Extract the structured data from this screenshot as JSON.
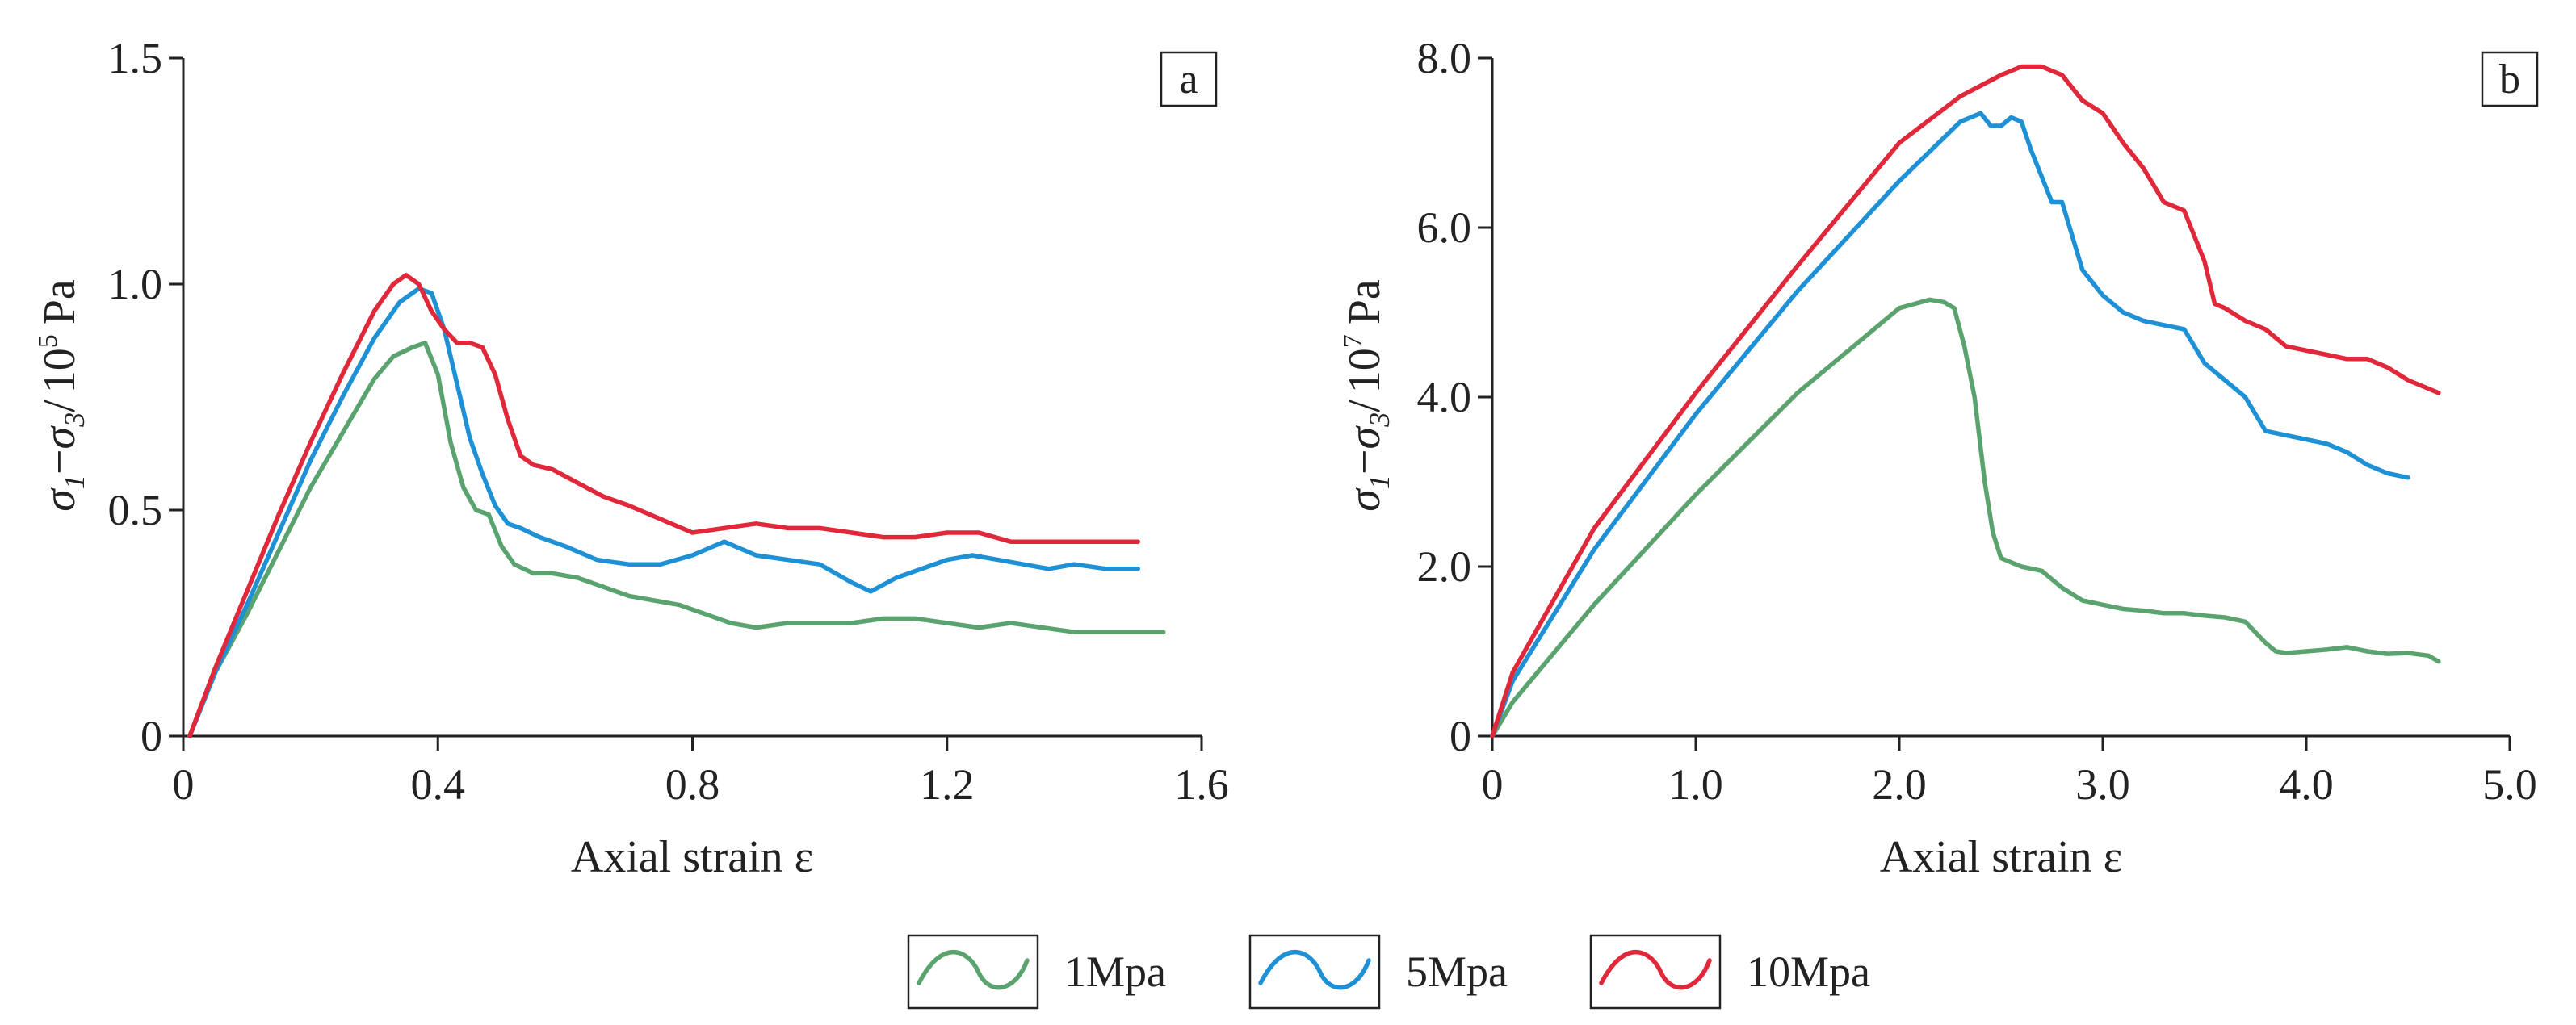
{
  "colors": {
    "s1": "#5aa36e",
    "s5": "#1e90d6",
    "s10": "#e0283a",
    "axis": "#222222"
  },
  "legend": [
    {
      "name": "1Mpa",
      "color": "#5aa36e"
    },
    {
      "name": "5Mpa",
      "color": "#1e90d6"
    },
    {
      "name": "10Mpa",
      "color": "#e0283a"
    }
  ],
  "chart_data": [
    {
      "panel_label": "a",
      "type": "line",
      "xlabel": "Axial strain ε",
      "ylabel": {
        "main": "σ",
        "sub1": "1",
        "minus": "−",
        "sub3": "3",
        "slash": "/",
        "base": "10",
        "exp": "5",
        "unit": "Pa"
      },
      "xlim": [
        0,
        1.6
      ],
      "ylim": [
        0,
        1.5
      ],
      "xticks": [
        0,
        0.4,
        0.8,
        1.2,
        1.6
      ],
      "xtick_labels": [
        "0",
        "0.4",
        "0.8",
        "1.2",
        "1.6"
      ],
      "yticks": [
        0,
        0.5,
        1.0,
        1.5
      ],
      "ytick_labels": [
        "0",
        "0.5",
        "1.0",
        "1.5"
      ],
      "series": [
        {
          "name": "1Mpa",
          "x": [
            0.01,
            0.05,
            0.1,
            0.15,
            0.2,
            0.25,
            0.3,
            0.33,
            0.36,
            0.38,
            0.4,
            0.42,
            0.44,
            0.46,
            0.48,
            0.5,
            0.52,
            0.55,
            0.58,
            0.62,
            0.66,
            0.7,
            0.74,
            0.78,
            0.82,
            0.86,
            0.9,
            0.95,
            1.0,
            1.05,
            1.1,
            1.15,
            1.2,
            1.25,
            1.3,
            1.35,
            1.4,
            1.45,
            1.5,
            1.54
          ],
          "y": [
            0.0,
            0.14,
            0.27,
            0.41,
            0.55,
            0.67,
            0.79,
            0.84,
            0.86,
            0.87,
            0.8,
            0.65,
            0.55,
            0.5,
            0.49,
            0.42,
            0.38,
            0.36,
            0.36,
            0.35,
            0.33,
            0.31,
            0.3,
            0.29,
            0.27,
            0.25,
            0.24,
            0.25,
            0.25,
            0.25,
            0.26,
            0.26,
            0.25,
            0.24,
            0.25,
            0.24,
            0.23,
            0.23,
            0.23,
            0.23
          ]
        },
        {
          "name": "5Mpa",
          "x": [
            0.01,
            0.05,
            0.1,
            0.15,
            0.2,
            0.25,
            0.3,
            0.34,
            0.37,
            0.39,
            0.41,
            0.43,
            0.45,
            0.47,
            0.49,
            0.51,
            0.53,
            0.56,
            0.6,
            0.65,
            0.7,
            0.75,
            0.8,
            0.85,
            0.9,
            0.95,
            1.0,
            1.05,
            1.08,
            1.12,
            1.16,
            1.2,
            1.24,
            1.28,
            1.32,
            1.36,
            1.4,
            1.45,
            1.5
          ],
          "y": [
            0.0,
            0.14,
            0.29,
            0.45,
            0.61,
            0.75,
            0.88,
            0.96,
            0.99,
            0.98,
            0.9,
            0.78,
            0.66,
            0.58,
            0.51,
            0.47,
            0.46,
            0.44,
            0.42,
            0.39,
            0.38,
            0.38,
            0.4,
            0.43,
            0.4,
            0.39,
            0.38,
            0.34,
            0.32,
            0.35,
            0.37,
            0.39,
            0.4,
            0.39,
            0.38,
            0.37,
            0.38,
            0.37,
            0.37
          ]
        },
        {
          "name": "10Mpa",
          "x": [
            0.01,
            0.05,
            0.1,
            0.15,
            0.2,
            0.25,
            0.3,
            0.33,
            0.35,
            0.37,
            0.39,
            0.41,
            0.43,
            0.45,
            0.47,
            0.49,
            0.51,
            0.53,
            0.55,
            0.58,
            0.62,
            0.66,
            0.7,
            0.75,
            0.8,
            0.85,
            0.9,
            0.95,
            1.0,
            1.05,
            1.1,
            1.15,
            1.2,
            1.25,
            1.3,
            1.35,
            1.4,
            1.45,
            1.5
          ],
          "y": [
            0.0,
            0.15,
            0.32,
            0.49,
            0.65,
            0.8,
            0.94,
            1.0,
            1.02,
            1.0,
            0.94,
            0.9,
            0.87,
            0.87,
            0.86,
            0.8,
            0.7,
            0.62,
            0.6,
            0.59,
            0.56,
            0.53,
            0.51,
            0.48,
            0.45,
            0.46,
            0.47,
            0.46,
            0.46,
            0.45,
            0.44,
            0.44,
            0.45,
            0.45,
            0.43,
            0.43,
            0.43,
            0.43,
            0.43
          ]
        }
      ]
    },
    {
      "panel_label": "b",
      "type": "line",
      "xlabel": "Axial strain ε",
      "ylabel": {
        "main": "σ",
        "sub1": "1",
        "minus": "−",
        "sub3": "3",
        "slash": "/",
        "base": "10",
        "exp": "7",
        "unit": "Pa"
      },
      "xlim": [
        0,
        5.0
      ],
      "ylim": [
        0,
        8.0
      ],
      "xticks": [
        0,
        1.0,
        2.0,
        3.0,
        4.0,
        5.0
      ],
      "xtick_labels": [
        "0",
        "1.0",
        "2.0",
        "3.0",
        "4.0",
        "5.0"
      ],
      "yticks": [
        0,
        2.0,
        4.0,
        6.0,
        8.0
      ],
      "ytick_labels": [
        "0",
        "2.0",
        "4.0",
        "6.0",
        "8.0"
      ],
      "series": [
        {
          "name": "1Mpa",
          "x": [
            0,
            0.1,
            0.5,
            1.0,
            1.5,
            2.0,
            2.15,
            2.22,
            2.27,
            2.32,
            2.37,
            2.42,
            2.46,
            2.5,
            2.55,
            2.6,
            2.7,
            2.8,
            2.9,
            3.0,
            3.1,
            3.2,
            3.3,
            3.4,
            3.5,
            3.6,
            3.7,
            3.8,
            3.85,
            3.9,
            4.0,
            4.1,
            4.2,
            4.3,
            4.4,
            4.5,
            4.6,
            4.65
          ],
          "y": [
            0,
            0.4,
            1.55,
            2.85,
            4.05,
            5.05,
            5.15,
            5.12,
            5.05,
            4.6,
            4.0,
            3.0,
            2.4,
            2.1,
            2.05,
            2.0,
            1.95,
            1.75,
            1.6,
            1.55,
            1.5,
            1.48,
            1.45,
            1.45,
            1.42,
            1.4,
            1.35,
            1.1,
            1.0,
            0.98,
            1.0,
            1.02,
            1.05,
            1.0,
            0.97,
            0.98,
            0.95,
            0.88
          ]
        },
        {
          "name": "5Mpa",
          "x": [
            0,
            0.1,
            0.5,
            1.0,
            1.5,
            2.0,
            2.3,
            2.4,
            2.45,
            2.5,
            2.55,
            2.6,
            2.65,
            2.7,
            2.75,
            2.8,
            2.85,
            2.9,
            3.0,
            3.1,
            3.2,
            3.3,
            3.4,
            3.5,
            3.6,
            3.7,
            3.8,
            3.9,
            4.0,
            4.1,
            4.2,
            4.3,
            4.4,
            4.5
          ],
          "y": [
            0,
            0.65,
            2.2,
            3.8,
            5.25,
            6.55,
            7.25,
            7.35,
            7.2,
            7.2,
            7.3,
            7.25,
            6.9,
            6.6,
            6.3,
            6.3,
            5.9,
            5.5,
            5.2,
            5.0,
            4.9,
            4.85,
            4.8,
            4.4,
            4.2,
            4.0,
            3.6,
            3.55,
            3.5,
            3.45,
            3.35,
            3.2,
            3.1,
            3.05
          ]
        },
        {
          "name": "10Mpa",
          "x": [
            0,
            0.1,
            0.5,
            1.0,
            1.5,
            2.0,
            2.3,
            2.5,
            2.6,
            2.7,
            2.8,
            2.9,
            3.0,
            3.1,
            3.2,
            3.3,
            3.4,
            3.5,
            3.55,
            3.6,
            3.7,
            3.8,
            3.9,
            4.0,
            4.1,
            4.2,
            4.3,
            4.4,
            4.5,
            4.6,
            4.65
          ],
          "y": [
            0,
            0.75,
            2.45,
            4.05,
            5.55,
            7.0,
            7.55,
            7.8,
            7.9,
            7.9,
            7.8,
            7.5,
            7.35,
            7.0,
            6.7,
            6.3,
            6.2,
            5.6,
            5.1,
            5.05,
            4.9,
            4.8,
            4.6,
            4.55,
            4.5,
            4.45,
            4.45,
            4.35,
            4.2,
            4.1,
            4.05
          ]
        }
      ]
    }
  ]
}
